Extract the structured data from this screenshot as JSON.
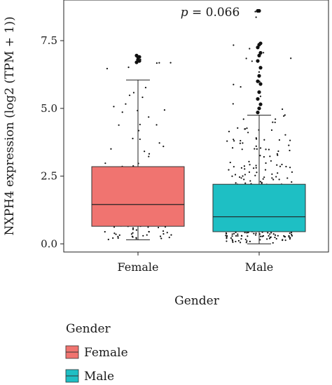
{
  "chart_data": {
    "type": "box",
    "annotation": "p = 0.066",
    "annotation_parts": {
      "italic": "p",
      "rest": " = 0.066"
    },
    "ylabel": "NXPH4 expression (log2 (TPM + 1))",
    "xlabel": "Gender",
    "ylim": [
      -0.3,
      9.0
    ],
    "yticks": [
      "0.0",
      "2.5",
      "5.0",
      "7.5"
    ],
    "ytick_values": [
      0,
      2.5,
      5,
      7.5
    ],
    "categories": [
      "Female",
      "Male"
    ],
    "legend": {
      "title": "Gender",
      "items": [
        "Female",
        "Male"
      ]
    },
    "series": [
      {
        "name": "Female",
        "color": "#F07470",
        "min": 0.15,
        "q1": 0.65,
        "median": 1.45,
        "q3": 2.85,
        "max": 6.05,
        "outliers": [
          6.7,
          6.8,
          6.9,
          6.95,
          6.9,
          6.75
        ]
      },
      {
        "name": "Male",
        "color": "#1EBFC4",
        "min": 0.0,
        "q1": 0.45,
        "median": 1.0,
        "q3": 2.2,
        "max": 4.75,
        "outliers": [
          4.85,
          5.0,
          5.15,
          5.35,
          5.6,
          5.9,
          6.0,
          6.2,
          6.5,
          6.75,
          6.95,
          7.05,
          7.25,
          7.35,
          7.4,
          8.6,
          8.6
        ]
      }
    ]
  }
}
